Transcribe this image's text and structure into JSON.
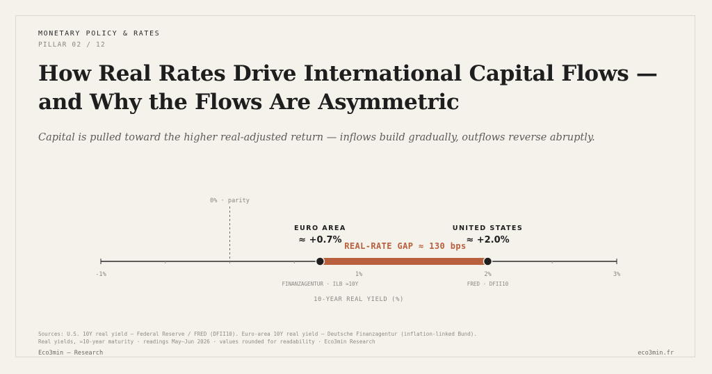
{
  "header": {
    "kicker": "MONETARY POLICY & RATES",
    "pillar": "PILLAR 02 / 12",
    "title": "How Real Rates Drive International Capital Flows — and Why the Flows Are Asymmetric",
    "subtitle": "Capital is pulled toward the higher real-adjusted return — inflows build gradually, outflows reverse abruptly."
  },
  "chart_data": {
    "type": "dumbbell",
    "xlabel": "10-YEAR REAL YIELD (%)",
    "xlim": [
      -1,
      3
    ],
    "ticks": [
      {
        "value": -1,
        "label": "-1%"
      },
      {
        "value": 1,
        "label": "1%"
      },
      {
        "value": 2,
        "label": "2%"
      },
      {
        "value": 3,
        "label": "3%"
      }
    ],
    "minor_ticks": [
      -0.5,
      0,
      0.5,
      1.5,
      2.5
    ],
    "reference_line": {
      "value": 0,
      "label": "0% · parity"
    },
    "points": [
      {
        "name": "EURO AREA",
        "value": 0.7,
        "value_label": "≈ +0.7%",
        "source": "FINANZAGENTUR · ILB ≈10Y"
      },
      {
        "name": "UNITED STATES",
        "value": 2.0,
        "value_label": "≈ +2.0%",
        "source": "FRED · DFII10"
      }
    ],
    "gap": {
      "value_bps": 130,
      "label": "REAL-RATE GAP ≈ 130 bps"
    },
    "colors": {
      "gap_bar": "#b85f3d",
      "axis": "#2a2a2a",
      "point": "#1e1e1e",
      "muted": "#8a8680"
    }
  },
  "footer": {
    "sources_line1": "Sources: U.S. 10Y real yield — Federal Reserve / FRED (DFII10). Euro-area 10Y real yield — Deutsche Finanzagentur (inflation-linked Bund).",
    "sources_line2": "Real yields, ≈10-year maturity · readings May–Jun 2026 · values rounded for readability · Eco3min Research",
    "brand": "Eco3min — Research",
    "site": "eco3min.fr"
  }
}
